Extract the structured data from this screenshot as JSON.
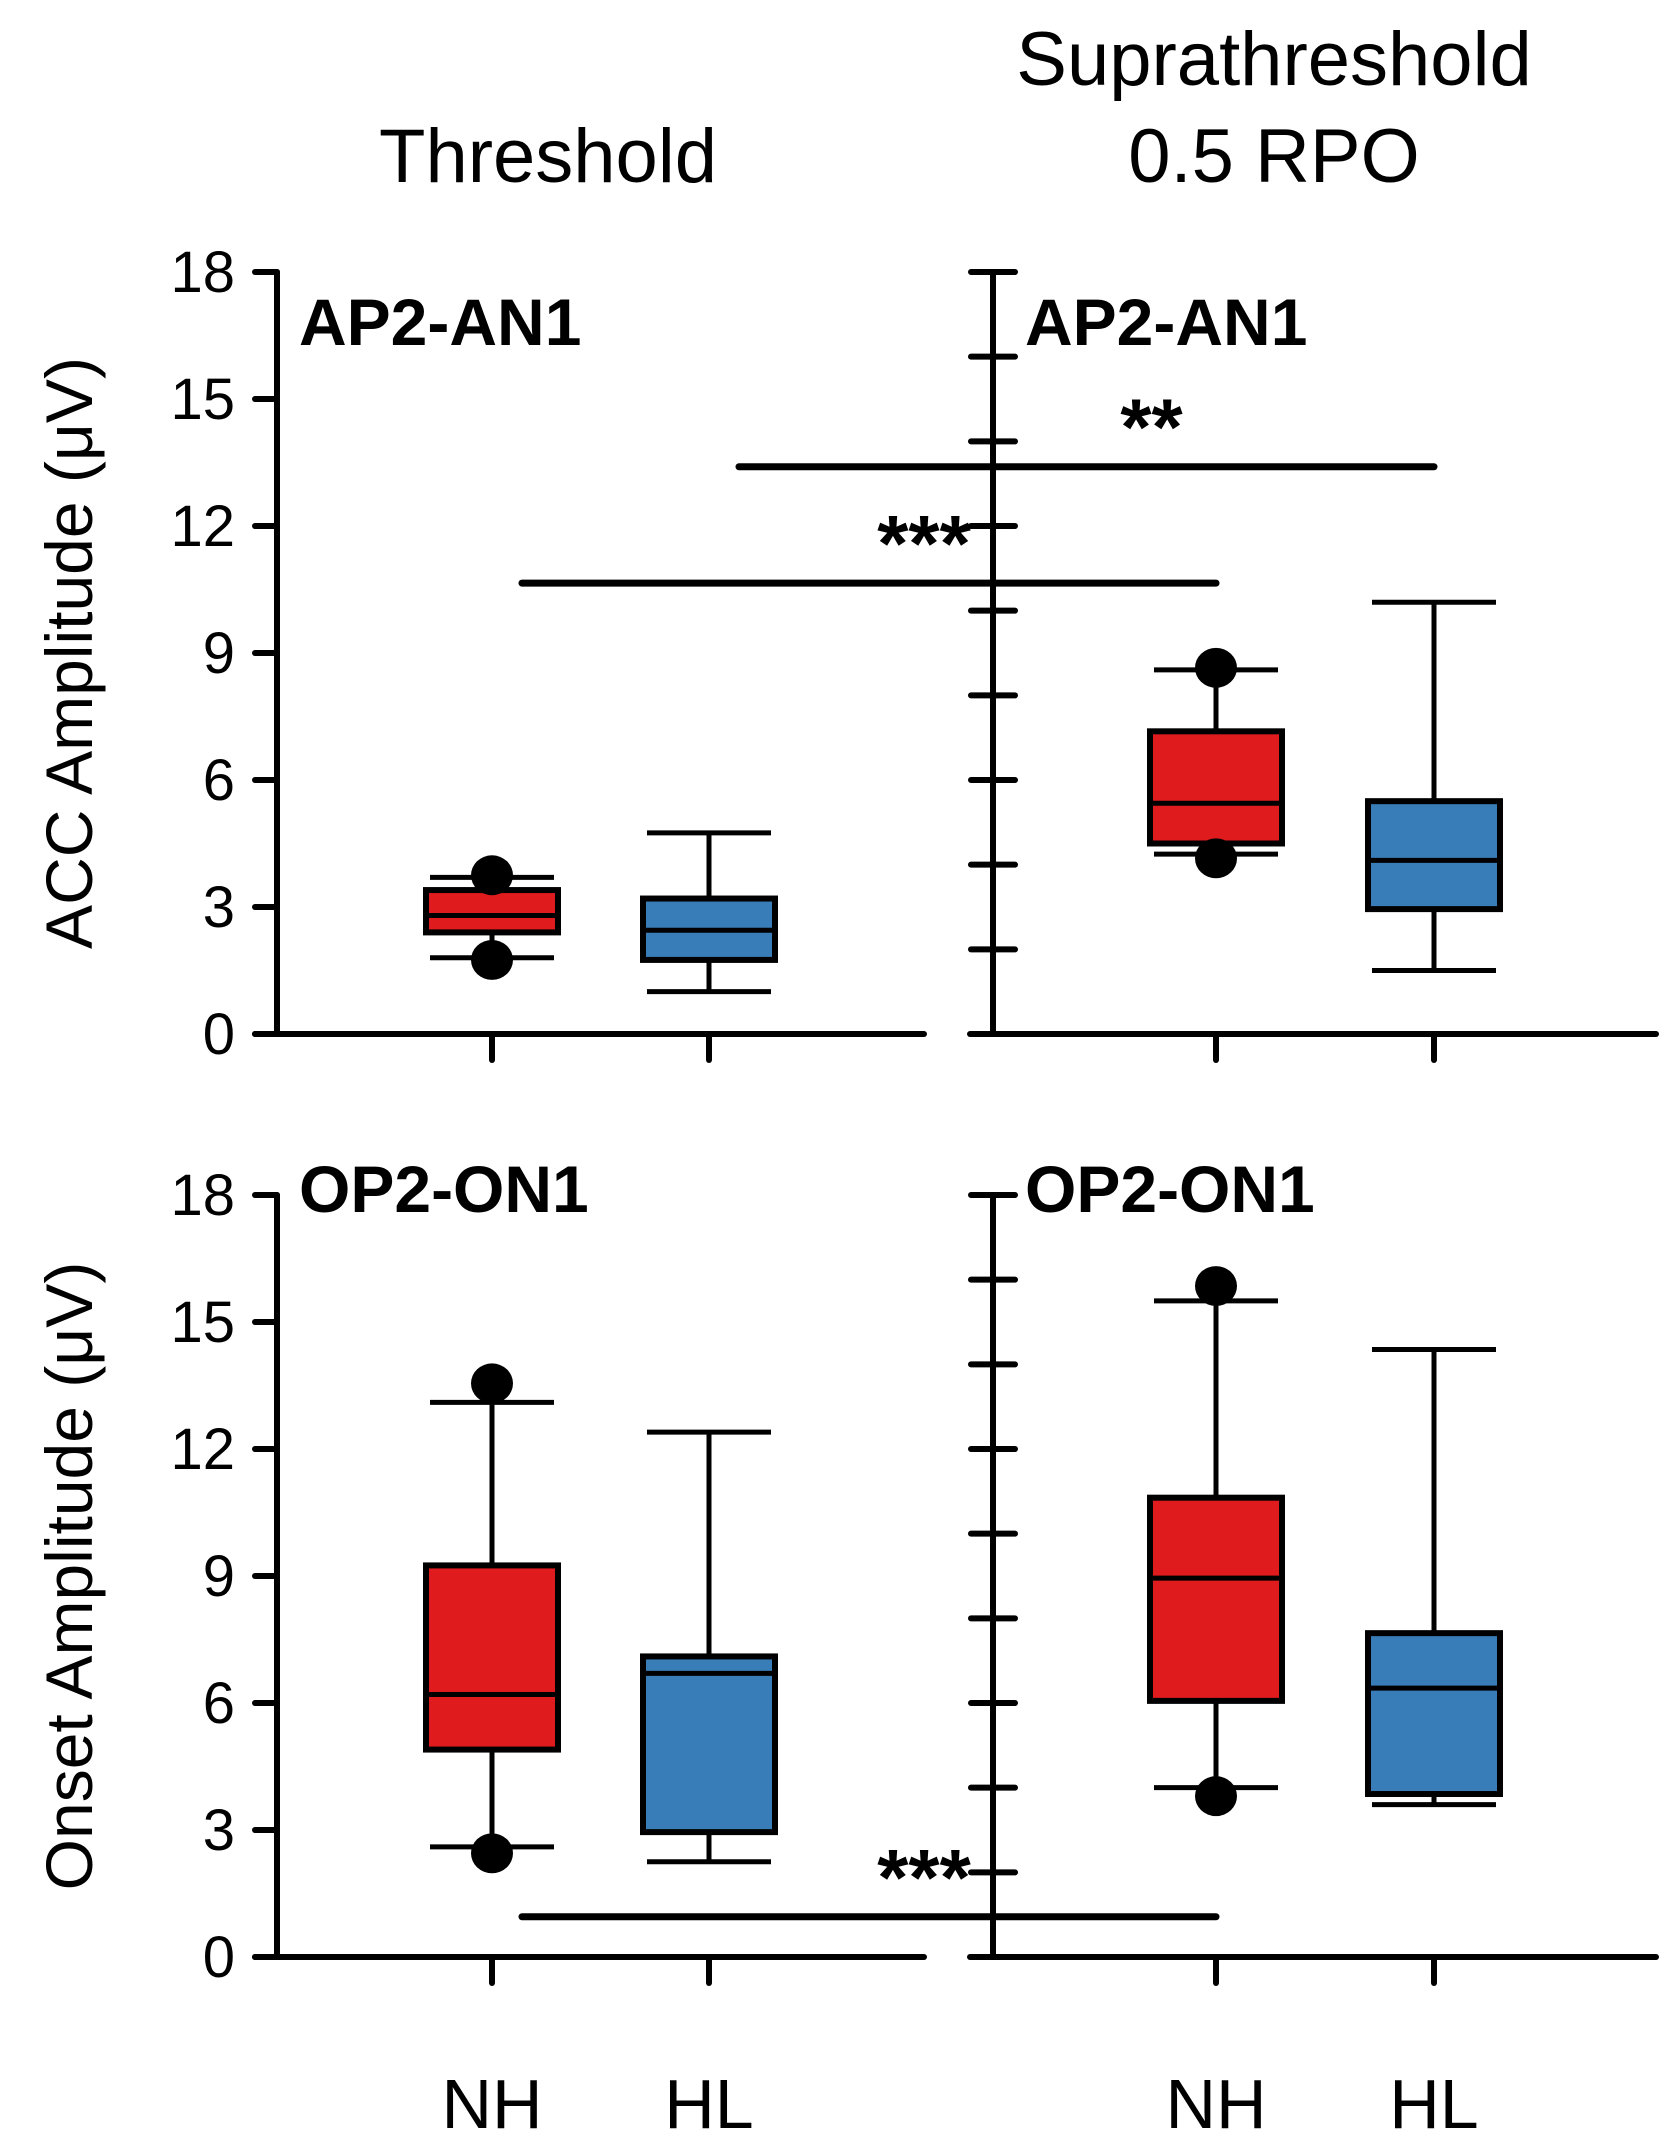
{
  "colors": {
    "NH": "#e01b1e",
    "HL": "#387db8"
  },
  "column_titles": {
    "left": "Threshold",
    "right_line1": "Suprathreshold",
    "right_line2": "0.5 RPO"
  },
  "row_axis_titles": {
    "top": "ACC Amplitude (μV)",
    "bottom": "Onset Amplitude (μV)"
  },
  "chart_data": [
    {
      "type": "box",
      "panel": "top-left",
      "label": "AP2-AN1",
      "condition": "Threshold",
      "ylabel": "ACC Amplitude (μV)",
      "ylim": [
        0,
        18
      ],
      "yticks": [
        0,
        3,
        6,
        9,
        12,
        15,
        18
      ],
      "categories": [
        "NH",
        "HL"
      ],
      "boxes": [
        {
          "group": "NH",
          "whisker_low": 1.8,
          "q1": 2.4,
          "median": 2.8,
          "q3": 3.4,
          "whisker_high": 3.7,
          "outliers": [
            1.75,
            3.75
          ]
        },
        {
          "group": "HL",
          "whisker_low": 1.0,
          "q1": 1.75,
          "median": 2.45,
          "q3": 3.2,
          "whisker_high": 4.75,
          "outliers": []
        }
      ]
    },
    {
      "type": "box",
      "panel": "top-right",
      "label": "AP2-AN1",
      "condition": "Suprathreshold 0.5 RPO",
      "ylim": [
        0,
        18
      ],
      "yticks": [
        0,
        2,
        4,
        6,
        8,
        10,
        12,
        14,
        16,
        18
      ],
      "categories": [
        "NH",
        "HL"
      ],
      "boxes": [
        {
          "group": "NH",
          "whisker_low": 4.25,
          "q1": 4.5,
          "median": 5.45,
          "q3": 7.15,
          "whisker_high": 8.6,
          "outliers": [
            4.15,
            8.65
          ]
        },
        {
          "group": "HL",
          "whisker_low": 1.5,
          "q1": 2.95,
          "median": 4.1,
          "q3": 5.5,
          "whisker_high": 10.2,
          "outliers": []
        }
      ]
    },
    {
      "type": "box",
      "panel": "bottom-left",
      "label": "OP2-ON1",
      "condition": "Threshold",
      "ylabel": "Onset Amplitude (μV)",
      "ylim": [
        0,
        18
      ],
      "yticks": [
        0,
        3,
        6,
        9,
        12,
        15,
        18
      ],
      "categories": [
        "NH",
        "HL"
      ],
      "boxes": [
        {
          "group": "NH",
          "whisker_low": 2.6,
          "q1": 4.9,
          "median": 6.2,
          "q3": 9.25,
          "whisker_high": 13.1,
          "outliers": [
            2.45,
            13.55
          ]
        },
        {
          "group": "HL",
          "whisker_low": 2.25,
          "q1": 2.95,
          "median": 6.7,
          "q3": 7.1,
          "whisker_high": 12.4,
          "outliers": []
        }
      ]
    },
    {
      "type": "box",
      "panel": "bottom-right",
      "label": "OP2-ON1",
      "condition": "Suprathreshold 0.5 RPO",
      "ylim": [
        0,
        18
      ],
      "yticks": [
        0,
        2,
        4,
        6,
        8,
        10,
        12,
        14,
        16,
        18
      ],
      "categories": [
        "NH",
        "HL"
      ],
      "boxes": [
        {
          "group": "NH",
          "whisker_low": 4.0,
          "q1": 6.05,
          "median": 8.95,
          "q3": 10.85,
          "whisker_high": 15.5,
          "outliers": [
            3.8,
            15.85
          ]
        },
        {
          "group": "HL",
          "whisker_low": 3.6,
          "q1": 3.85,
          "median": 6.35,
          "q3": 7.65,
          "whisker_high": 14.35,
          "outliers": []
        }
      ]
    }
  ],
  "significance": [
    {
      "row": "top",
      "from": "left-HL",
      "to": "right-HL",
      "y": 13.4,
      "label": "**"
    },
    {
      "row": "top",
      "from": "left-NH",
      "to": "right-NH",
      "y": 10.65,
      "label": "***"
    },
    {
      "row": "bottom",
      "from": "left-NH",
      "to": "right-NH",
      "y": 0.95,
      "label": "***"
    }
  ]
}
